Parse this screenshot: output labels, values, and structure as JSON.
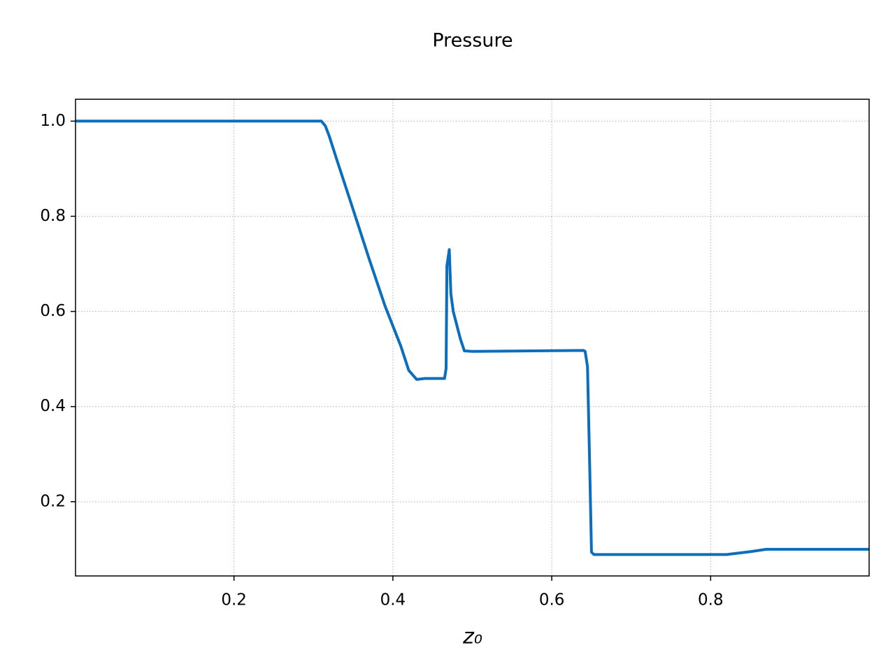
{
  "chart_data": {
    "type": "line",
    "title": "Pressure",
    "x_label": "z₀",
    "x": [
      0.0005,
      0.31,
      0.315,
      0.32,
      0.33,
      0.35,
      0.37,
      0.39,
      0.41,
      0.42,
      0.43,
      0.44,
      0.465,
      0.467,
      0.468,
      0.471,
      0.473,
      0.476,
      0.485,
      0.49,
      0.5,
      0.64,
      0.642,
      0.645,
      0.648,
      0.65,
      0.653,
      0.82,
      0.85,
      0.87,
      0.9995
    ],
    "series": [
      {
        "color": "#0a6ebd",
        "values": [
          1.0,
          1.0,
          0.99,
          0.968,
          0.916,
          0.814,
          0.711,
          0.612,
          0.527,
          0.476,
          0.457,
          0.459,
          0.459,
          0.48,
          0.696,
          0.73,
          0.637,
          0.6,
          0.542,
          0.517,
          0.516,
          0.518,
          0.516,
          0.484,
          0.256,
          0.094,
          0.089,
          0.089,
          0.095,
          0.1,
          0.1
        ]
      }
    ],
    "xlim": [
      0.0005,
      0.9995
    ],
    "ylim": [
      0.044,
      1.046
    ],
    "xticks": [
      0.2,
      0.4,
      0.6,
      0.8
    ],
    "yticks": [
      0.2,
      0.4,
      0.6,
      0.8,
      {
        "value": 1.0,
        "label": "1.0"
      }
    ],
    "grid": true
  }
}
